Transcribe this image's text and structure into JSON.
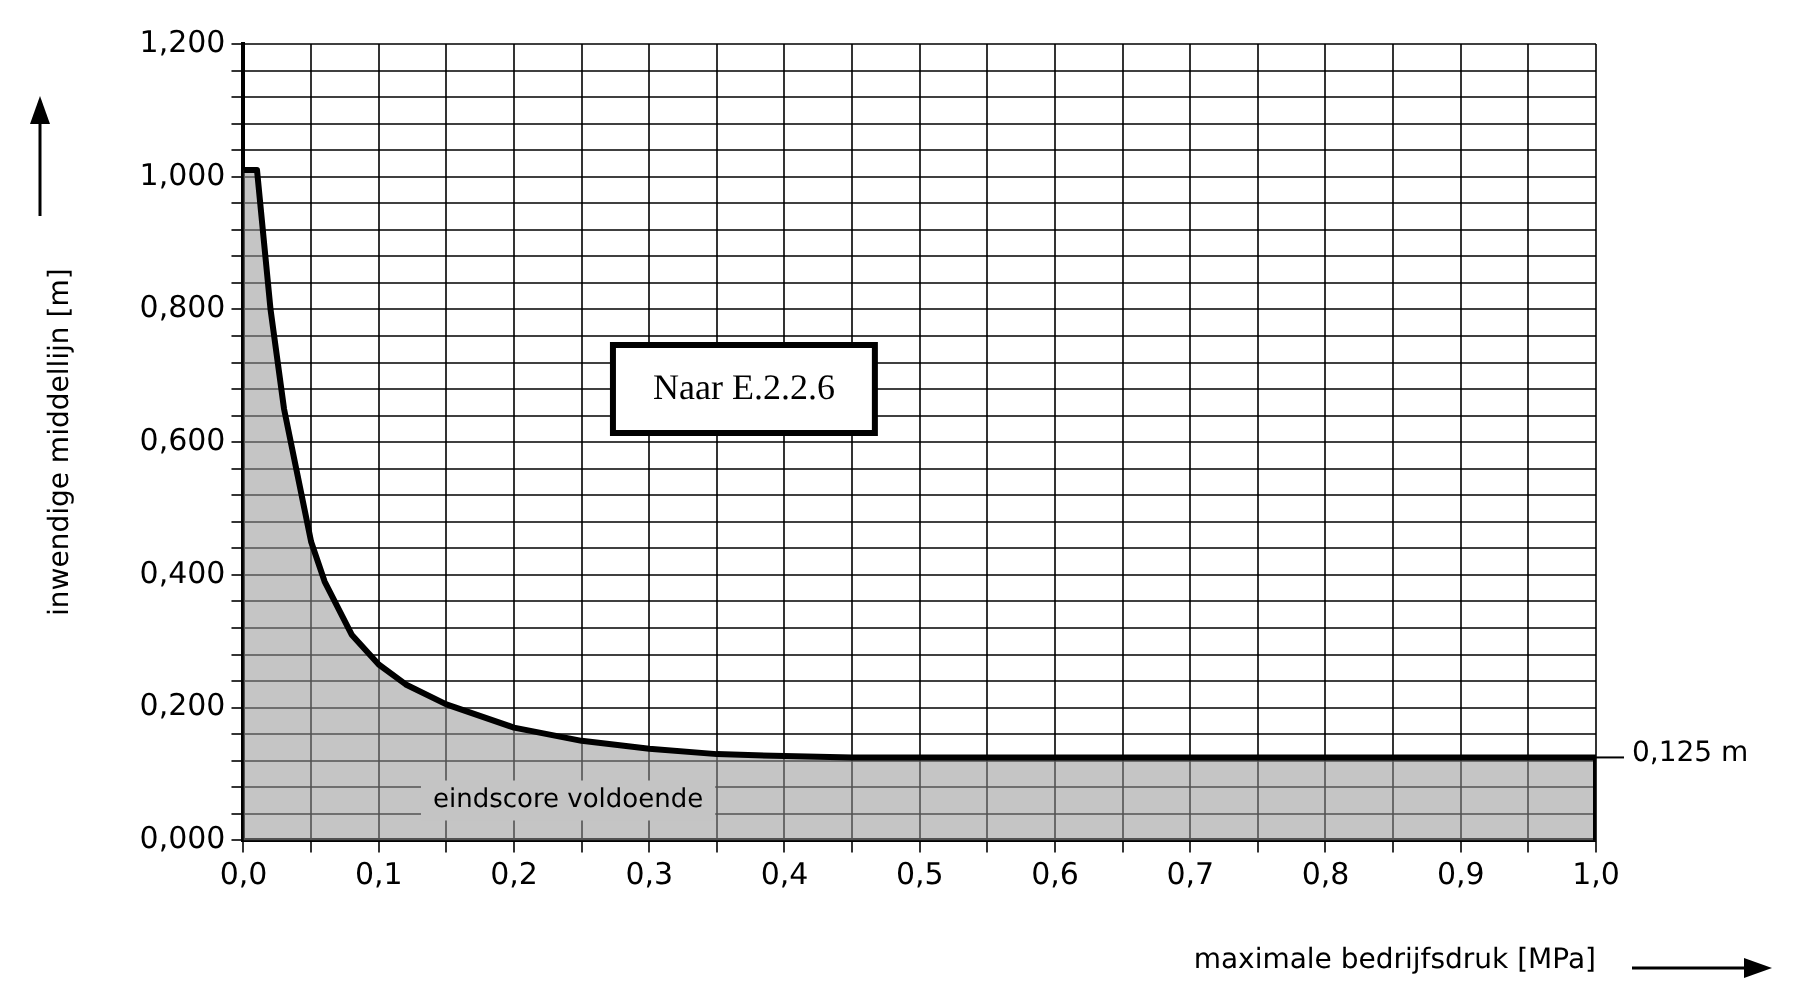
{
  "chart_data": {
    "type": "area",
    "xlabel": "maximale bedrijfsdruk [MPa]",
    "ylabel": "inwendige middellijn [m]",
    "x": [
      0,
      0.01,
      0.02,
      0.03,
      0.04,
      0.05,
      0.06,
      0.08,
      0.1,
      0.12,
      0.15,
      0.2,
      0.25,
      0.3,
      0.35,
      0.4,
      0.45,
      1.0,
      1.0
    ],
    "series": [
      {
        "color": "#000000",
        "values": [
          1.01,
          1.01,
          0.8,
          0.65,
          0.55,
          0.45,
          0.39,
          0.31,
          0.265,
          0.235,
          0.205,
          0.17,
          0.15,
          0.138,
          0.13,
          0.127,
          0.125,
          0.125,
          0
        ]
      }
    ],
    "xlim": [
      0,
      1
    ],
    "ylim": [
      0,
      1.2
    ],
    "xticks": [
      {
        "value": 0,
        "label": "0,0"
      },
      {
        "value": 0.05,
        "label": null
      },
      {
        "value": 0.1,
        "label": "0,1"
      },
      {
        "value": 0.15,
        "label": null
      },
      {
        "value": 0.2,
        "label": "0,2"
      },
      {
        "value": 0.25,
        "label": null
      },
      {
        "value": 0.3,
        "label": "0,3"
      },
      {
        "value": 0.35,
        "label": null
      },
      {
        "value": 0.4,
        "label": "0,4"
      },
      {
        "value": 0.45,
        "label": null
      },
      {
        "value": 0.5,
        "label": "0,5"
      },
      {
        "value": 0.55,
        "label": null
      },
      {
        "value": 0.6,
        "label": "0,6"
      },
      {
        "value": 0.65,
        "label": null
      },
      {
        "value": 0.7,
        "label": "0,7"
      },
      {
        "value": 0.75,
        "label": null
      },
      {
        "value": 0.8,
        "label": "0,8"
      },
      {
        "value": 0.85,
        "label": null
      },
      {
        "value": 0.9,
        "label": "0,9"
      },
      {
        "value": 0.95,
        "label": null
      },
      {
        "value": 1,
        "label": "1,0"
      }
    ],
    "yticks": [
      {
        "value": 0,
        "label": "0,000"
      },
      {
        "value": 0.04,
        "label": null
      },
      {
        "value": 0.08,
        "label": null
      },
      {
        "value": 0.12,
        "label": null
      },
      {
        "value": 0.16,
        "label": null
      },
      {
        "value": 0.2,
        "label": "0,200"
      },
      {
        "value": 0.24,
        "label": null
      },
      {
        "value": 0.28,
        "label": null
      },
      {
        "value": 0.32,
        "label": null
      },
      {
        "value": 0.36,
        "label": null
      },
      {
        "value": 0.4,
        "label": "0,400"
      },
      {
        "value": 0.44,
        "label": null
      },
      {
        "value": 0.48,
        "label": null
      },
      {
        "value": 0.52,
        "label": null
      },
      {
        "value": 0.56,
        "label": null
      },
      {
        "value": 0.6,
        "label": "0,600"
      },
      {
        "value": 0.64,
        "label": null
      },
      {
        "value": 0.68,
        "label": null
      },
      {
        "value": 0.72,
        "label": null
      },
      {
        "value": 0.76,
        "label": null
      },
      {
        "value": 0.8,
        "label": "0,800"
      },
      {
        "value": 0.84,
        "label": null
      },
      {
        "value": 0.88,
        "label": null
      },
      {
        "value": 0.92,
        "label": null
      },
      {
        "value": 0.96,
        "label": null
      },
      {
        "value": 1.0,
        "label": "1,000"
      },
      {
        "value": 1.04,
        "label": null
      },
      {
        "value": 1.08,
        "label": null
      },
      {
        "value": 1.12,
        "label": null
      },
      {
        "value": 1.16,
        "label": null
      },
      {
        "value": 1.2,
        "label": "1,200"
      }
    ],
    "grid": true,
    "legend": false,
    "marker": "none",
    "line_style": "solid",
    "annotations": [
      "Naar E.2.2.6",
      "eindscore voldoende",
      {
        "text": "0,125 m",
        "x": 1,
        "y": 0.125
      }
    ]
  }
}
